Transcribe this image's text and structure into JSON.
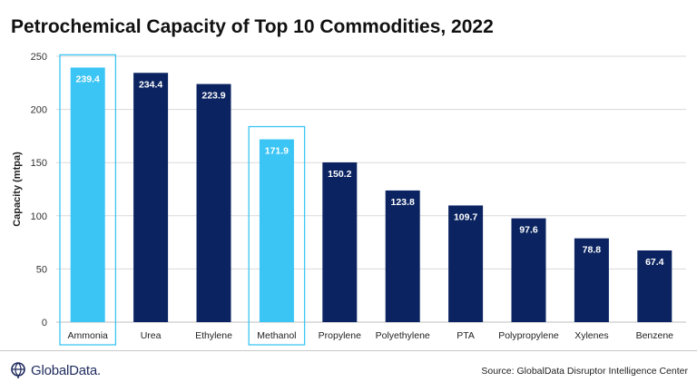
{
  "header": {
    "title": "Petrochemical Capacity of Top 10 Commodities, 2022"
  },
  "footer": {
    "brand": "GlobalData.",
    "source": "Source: GlobalData Disruptor Intelligence Center",
    "logo_icon": "globe-pin-icon"
  },
  "colors": {
    "primary_bar": "#0b2461",
    "highlight_bar": "#3bc5f5",
    "highlight_frame": "#3bc5f5",
    "gridline": "#d9d9d9"
  },
  "chart_data": {
    "type": "bar",
    "title": "Petrochemical Capacity of Top 10 Commodities, 2022",
    "xlabel": "",
    "ylabel": "Capacity (mtpa)",
    "ylim": [
      0,
      250
    ],
    "yticks": [
      0,
      50,
      100,
      150,
      200,
      250
    ],
    "grid": true,
    "categories": [
      "Ammonia",
      "Urea",
      "Ethylene",
      "Methanol",
      "Propylene",
      "Polyethylene",
      "PTA",
      "Polypropylene",
      "Xylenes",
      "Benzene"
    ],
    "values": [
      239.4,
      234.4,
      223.9,
      171.9,
      150.2,
      123.8,
      109.7,
      97.6,
      78.8,
      67.4
    ],
    "data_labels": [
      "239.4",
      "234.4",
      "223.9",
      "171.9",
      "150.2",
      "123.8",
      "109.7",
      "97.6",
      "78.8",
      "67.4"
    ],
    "highlighted": [
      "Ammonia",
      "Methanol"
    ]
  }
}
